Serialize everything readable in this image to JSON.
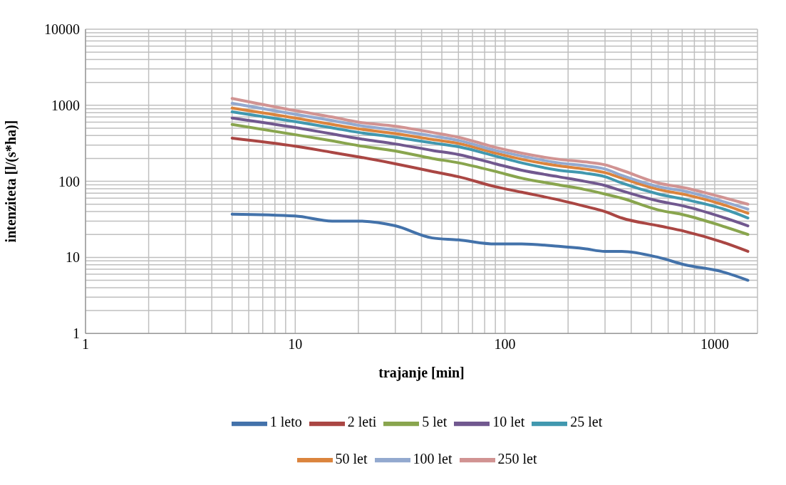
{
  "chart_data": {
    "type": "line",
    "xlabel": "trajanje [min]",
    "ylabel": "intenziteta [l/(s*ha)]",
    "log": "xy",
    "grid": true,
    "legend": "bottom",
    "marker": "none",
    "line_style": "solid",
    "x": [
      5,
      10,
      15,
      20,
      30,
      45,
      60,
      90,
      120,
      180,
      240,
      300,
      360,
      540,
      720,
      1080,
      1440
    ],
    "xlim": [
      1,
      1600
    ],
    "xticks": [
      1,
      {
        "value": 2,
        "label": null
      },
      {
        "value": 3,
        "label": null
      },
      {
        "value": 4,
        "label": null
      },
      {
        "value": 5,
        "label": null
      },
      {
        "value": 6,
        "label": null
      },
      {
        "value": 7,
        "label": null
      },
      {
        "value": 8,
        "label": null
      },
      {
        "value": 9,
        "label": null
      },
      10,
      {
        "value": 20,
        "label": null
      },
      {
        "value": 30,
        "label": null
      },
      {
        "value": 40,
        "label": null
      },
      {
        "value": 50,
        "label": null
      },
      {
        "value": 60,
        "label": null
      },
      {
        "value": 70,
        "label": null
      },
      {
        "value": 80,
        "label": null
      },
      {
        "value": 90,
        "label": null
      },
      100,
      {
        "value": 200,
        "label": null
      },
      {
        "value": 300,
        "label": null
      },
      {
        "value": 400,
        "label": null
      },
      {
        "value": 500,
        "label": null
      },
      {
        "value": 600,
        "label": null
      },
      {
        "value": 700,
        "label": null
      },
      {
        "value": 800,
        "label": null
      },
      {
        "value": 900,
        "label": null
      },
      1000
    ],
    "ylim": [
      1,
      10000
    ],
    "yticks": [
      1,
      {
        "value": 2,
        "label": null
      },
      {
        "value": 3,
        "label": null
      },
      {
        "value": 4,
        "label": null
      },
      {
        "value": 5,
        "label": null
      },
      {
        "value": 6,
        "label": null
      },
      {
        "value": 7,
        "label": null
      },
      {
        "value": 8,
        "label": null
      },
      {
        "value": 9,
        "label": null
      },
      10,
      {
        "value": 20,
        "label": null
      },
      {
        "value": 30,
        "label": null
      },
      {
        "value": 40,
        "label": null
      },
      {
        "value": 50,
        "label": null
      },
      {
        "value": 60,
        "label": null
      },
      {
        "value": 70,
        "label": null
      },
      {
        "value": 80,
        "label": null
      },
      {
        "value": 90,
        "label": null
      },
      100,
      {
        "value": 200,
        "label": null
      },
      {
        "value": 300,
        "label": null
      },
      {
        "value": 400,
        "label": null
      },
      {
        "value": 500,
        "label": null
      },
      {
        "value": 600,
        "label": null
      },
      {
        "value": 700,
        "label": null
      },
      {
        "value": 800,
        "label": null
      },
      {
        "value": 900,
        "label": null
      },
      1000,
      {
        "value": 2000,
        "label": null
      },
      {
        "value": 3000,
        "label": null
      },
      {
        "value": 4000,
        "label": null
      },
      {
        "value": 5000,
        "label": null
      },
      {
        "value": 6000,
        "label": null
      },
      {
        "value": 7000,
        "label": null
      },
      {
        "value": 8000,
        "label": null
      },
      {
        "value": 9000,
        "label": null
      },
      10000
    ],
    "series": [
      {
        "name": "1 leto",
        "color": "#4372aa",
        "values": [
          37,
          35,
          30,
          30,
          26,
          18,
          17,
          15,
          15,
          14,
          13,
          12,
          12,
          10,
          8,
          6.5,
          5
        ]
      },
      {
        "name": "2 leti",
        "color": "#aa4643",
        "values": [
          370,
          290,
          240,
          210,
          170,
          135,
          115,
          85,
          72,
          57,
          47,
          40,
          33,
          26,
          22,
          16,
          12
        ]
      },
      {
        "name": "5 let",
        "color": "#89a54e",
        "values": [
          560,
          410,
          340,
          295,
          250,
          200,
          175,
          135,
          110,
          90,
          78,
          68,
          60,
          42,
          36,
          26,
          20
        ]
      },
      {
        "name": "10 let",
        "color": "#71588f",
        "values": [
          680,
          510,
          420,
          365,
          310,
          255,
          225,
          170,
          140,
          115,
          100,
          88,
          75,
          55,
          47,
          34,
          26
        ]
      },
      {
        "name": "25 let",
        "color": "#4198af",
        "values": [
          820,
          610,
          505,
          440,
          380,
          320,
          285,
          215,
          175,
          140,
          128,
          115,
          95,
          68,
          58,
          44,
          33
        ]
      },
      {
        "name": "50 let",
        "color": "#db843d",
        "values": [
          920,
          680,
          560,
          490,
          425,
          355,
          315,
          235,
          195,
          160,
          145,
          130,
          110,
          78,
          67,
          50,
          38
        ]
      },
      {
        "name": "100 let",
        "color": "#93a9cf",
        "values": [
          1060,
          760,
          630,
          545,
          470,
          395,
          345,
          255,
          215,
          175,
          160,
          145,
          120,
          85,
          74,
          55,
          43
        ]
      },
      {
        "name": "250 let",
        "color": "#d19392",
        "values": [
          1230,
          850,
          700,
          600,
          530,
          440,
          380,
          280,
          235,
          195,
          180,
          165,
          140,
          95,
          82,
          62,
          50
        ]
      }
    ]
  }
}
